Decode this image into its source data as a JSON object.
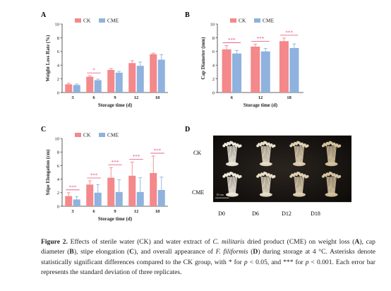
{
  "colors": {
    "ck": "#f4888a",
    "cme": "#8fb2de",
    "sig": "#e0507f",
    "ink": "#333333"
  },
  "chart_data": [
    {
      "type": "bar",
      "panel": "A",
      "categories": [
        "3",
        "6",
        "9",
        "12",
        "18"
      ],
      "series": [
        {
          "name": "CK",
          "values": [
            1.2,
            2.3,
            3.3,
            4.3,
            5.6
          ],
          "errors": [
            0.15,
            0.15,
            0.2,
            0.35,
            0.15
          ]
        },
        {
          "name": "CME",
          "values": [
            1.1,
            1.8,
            2.9,
            3.9,
            4.8
          ],
          "errors": [
            0.15,
            0.15,
            0.2,
            0.55,
            0.75
          ]
        }
      ],
      "significance": [
        {
          "index": 1,
          "label": "*"
        }
      ],
      "xlabel": "Storage time (d)",
      "ylabel": "Weight Loss Rate (%)",
      "yticks": [
        "0",
        "2",
        "4",
        "6",
        "8",
        "10"
      ],
      "ylim": [
        0,
        10
      ],
      "legend": "top-left"
    },
    {
      "type": "bar",
      "panel": "B",
      "categories": [
        "6",
        "12",
        "18"
      ],
      "series": [
        {
          "name": "CK",
          "values": [
            6.3,
            6.7,
            7.5
          ],
          "errors": [
            0.55,
            0.35,
            0.45
          ]
        },
        {
          "name": "CME",
          "values": [
            5.7,
            6.0,
            6.5
          ],
          "errors": [
            0.45,
            0.45,
            0.6
          ]
        }
      ],
      "significance": [
        {
          "index": 0,
          "label": "***"
        },
        {
          "index": 1,
          "label": "***"
        },
        {
          "index": 2,
          "label": "***"
        }
      ],
      "xlabel": "Storage time (d)",
      "ylabel": "Cap Diameter (mm)",
      "yticks": [
        "0",
        "2",
        "4",
        "6",
        "8",
        "10"
      ],
      "ylim": [
        0,
        10
      ],
      "legend": "top-left"
    },
    {
      "type": "bar",
      "panel": "C",
      "categories": [
        "3",
        "6",
        "9",
        "12",
        "18"
      ],
      "series": [
        {
          "name": "CK",
          "values": [
            1.5,
            3.2,
            4.2,
            4.5,
            4.9
          ],
          "errors": [
            0.5,
            0.55,
            1.5,
            2.0,
            2.5
          ]
        },
        {
          "name": "CME",
          "values": [
            1.0,
            2.0,
            2.1,
            2.1,
            2.4
          ],
          "errors": [
            0.4,
            1.2,
            1.8,
            2.1,
            1.9
          ]
        }
      ],
      "significance": [
        {
          "index": 0,
          "label": "***"
        },
        {
          "index": 1,
          "label": "***"
        },
        {
          "index": 2,
          "label": "***"
        },
        {
          "index": 3,
          "label": "***"
        },
        {
          "index": 4,
          "label": "***"
        }
      ],
      "xlabel": "Storage time (d)",
      "ylabel": "Stipe Elongation (cm)",
      "yticks": [
        "0",
        "2",
        "4",
        "6",
        "8",
        "10"
      ],
      "ylim": [
        0,
        10
      ],
      "legend": "top-left"
    }
  ],
  "panel_d": {
    "letter": "D",
    "row_labels": [
      "CK",
      "CME"
    ],
    "col_labels": [
      "D0",
      "D6",
      "D12",
      "D18"
    ],
    "scale_label": "10 cm"
  },
  "caption": {
    "lead": "Figure 2.",
    "t1": " Effects of sterile water (CK) and water extract of ",
    "species1": "C. militaris",
    "t2": " dried product (CME) on weight loss (",
    "pA": "A",
    "t3": "), cap diameter (",
    "pB": "B",
    "t4": "), stipe elongation (",
    "pC": "C",
    "t5": "), and overall appearance of ",
    "species2": "F. filiformis",
    "t6": " (",
    "pD": "D",
    "t7": ") during storage at 4 °C. Asterisks denote statistically significant differences compared to the CK group, with * for ",
    "p1": "p",
    "t8": " < 0.05, and *** for ",
    "p2": "p",
    "t9": " < 0.001. Each error bar represents the standard deviation of three replicates."
  }
}
